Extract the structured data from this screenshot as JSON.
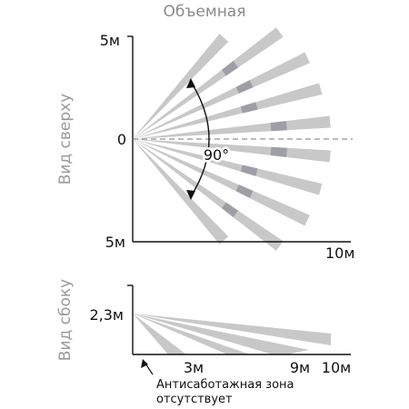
{
  "title": "Объемная",
  "top_view": {
    "label": "Вид сверху",
    "y_top": "5м",
    "y_mid": "0",
    "y_bottom": "5м",
    "x_end": "10м",
    "angle": "90°",
    "angle_unit": "°"
  },
  "side_view": {
    "label": "Вид сбоку",
    "height": "2,3м",
    "x_3": "3м",
    "x_9": "9м",
    "x_10": "10м"
  },
  "note_line1": "Антисаботажная зона",
  "note_line2": "отсутствует",
  "colors": {
    "beam_light": "#c8c8c8",
    "beam_dark": "#9e9ea6",
    "axis": "#111111",
    "label_gray": "#9a9a9a"
  }
}
